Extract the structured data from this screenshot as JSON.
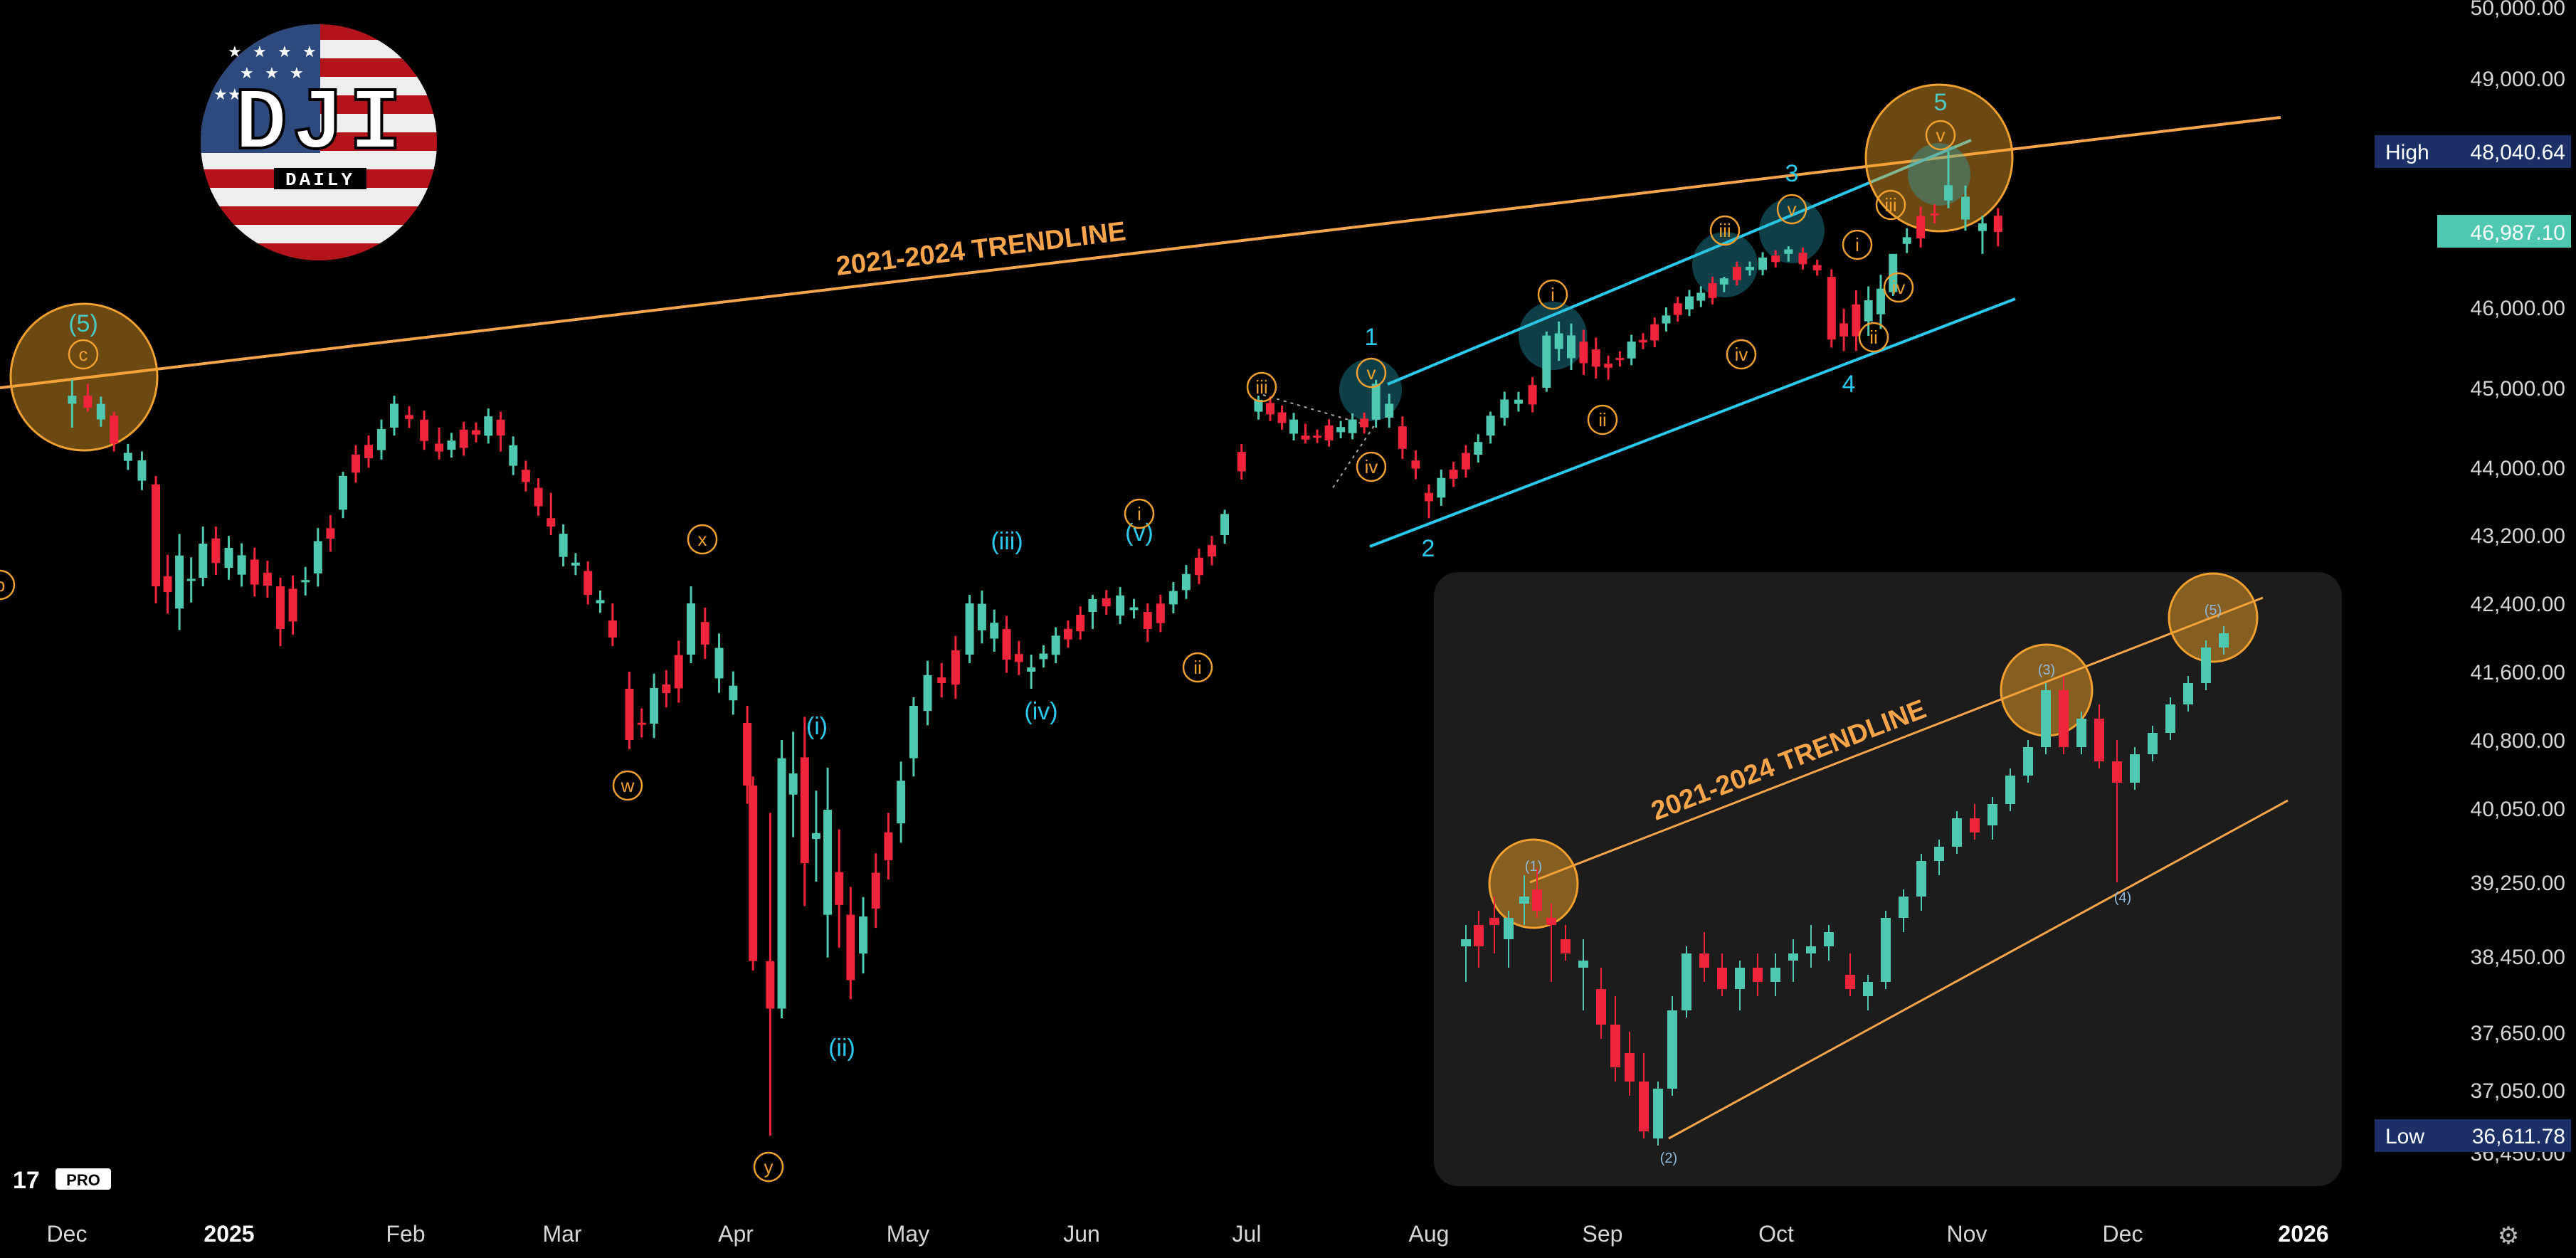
{
  "chart": {
    "logo": {
      "ticker": "DJI",
      "timeframe": "DAILY"
    },
    "trendline_label": "2021-2024 TRENDLINE",
    "watermark": "PRO",
    "x_labels": [
      "Dec",
      "2025",
      "Feb",
      "Mar",
      "Apr",
      "May",
      "Jun",
      "Jul",
      "Aug",
      "Sep",
      "Oct",
      "Nov",
      "Dec",
      "2026"
    ],
    "y_labels": [
      "50,000.00",
      "49,000.00",
      "46,000.00",
      "45,000.00",
      "44,000.00",
      "43,200.00",
      "42,400.00",
      "41,600.00",
      "40,800.00",
      "40,050.00",
      "39,250.00",
      "38,450.00",
      "37,650.00",
      "37,050.00",
      "36,450.00"
    ],
    "high": {
      "label": "High",
      "value": "48,040.64"
    },
    "last": {
      "value": "46,987.10"
    },
    "low": {
      "label": "Low",
      "value": "36,611.78"
    },
    "wave_labels": {
      "big5_top": "(5)",
      "c": "c",
      "b": "b",
      "x": "x",
      "w": "w",
      "y": "y",
      "i_blue": "(i)",
      "ii_blue": "(ii)",
      "iii_blue": "(iii)",
      "iv_blue": "(iv)",
      "v_blue": "(v)",
      "i_or": "i",
      "ii_or": "ii",
      "iii_or": "iii",
      "iv_or": "iv",
      "v_or": "v",
      "w1": "1",
      "w2": "2",
      "w3": "3",
      "w4": "4",
      "w5": "5"
    },
    "inset": {
      "trendline_label": "2021-2024 TRENDLINE",
      "p1": "(1)",
      "p2": "(2)",
      "p3": "(3)",
      "p4": "(4)",
      "p5": "(5)"
    }
  },
  "chart_data": {
    "type": "candlestick",
    "title": "DJI",
    "ylabel": "",
    "ylim": [
      36450,
      50000
    ],
    "series": [
      {
        "name": "",
        "candles": [
          [
            "2024-12-02",
            44800,
            45100,
            44500,
            44900
          ],
          [
            "2024-12-05",
            44900,
            45050,
            44700,
            44750
          ],
          [
            "2024-12-10",
            44650,
            44700,
            44200,
            44300
          ],
          [
            "2024-12-18",
            43800,
            43900,
            42400,
            42600
          ],
          [
            "2024-12-27",
            42700,
            43300,
            42600,
            43100
          ],
          [
            "2025-01-10",
            42600,
            42700,
            41900,
            42100
          ],
          [
            "2025-01-21",
            43500,
            43950,
            43400,
            43900
          ],
          [
            "2025-01-30",
            44500,
            44900,
            44400,
            44800
          ],
          [
            "2025-02-07",
            44300,
            44500,
            44100,
            44200
          ],
          [
            "2025-02-18",
            44600,
            44700,
            44200,
            44400
          ],
          [
            "2025-02-27",
            43400,
            43700,
            43200,
            43300
          ],
          [
            "2025-03-10",
            42200,
            42400,
            41900,
            42000
          ],
          [
            "2025-03-13",
            41400,
            41600,
            40700,
            40800
          ],
          [
            "2025-03-24",
            41800,
            42600,
            41700,
            42400
          ],
          [
            "2025-04-03",
            41000,
            41200,
            40100,
            40300
          ],
          [
            "2025-04-04",
            40300,
            40400,
            38300,
            38400
          ],
          [
            "2025-04-07",
            38400,
            40000,
            36612,
            37900
          ],
          [
            "2025-04-09",
            37900,
            40800,
            37800,
            40600
          ],
          [
            "2025-04-21",
            38900,
            39200,
            38000,
            38200
          ],
          [
            "2025-05-02",
            40600,
            41300,
            40400,
            41200
          ],
          [
            "2025-05-12",
            41800,
            42500,
            41700,
            42400
          ],
          [
            "2025-05-23",
            41600,
            41800,
            41400,
            41650
          ],
          [
            "2025-06-03",
            42300,
            42500,
            42100,
            42450
          ],
          [
            "2025-06-13",
            42300,
            42400,
            41950,
            42100
          ],
          [
            "2025-06-27",
            43200,
            43500,
            43100,
            43450
          ],
          [
            "2025-07-03",
            44700,
            44900,
            44600,
            44850
          ],
          [
            "2025-07-11",
            44400,
            44550,
            44300,
            44350
          ],
          [
            "2025-07-23",
            44600,
            45100,
            44500,
            45050
          ],
          [
            "2025-08-01",
            43700,
            43800,
            43400,
            43600
          ],
          [
            "2025-08-12",
            44400,
            44700,
            44300,
            44650
          ],
          [
            "2025-08-22",
            45000,
            45700,
            44950,
            45650
          ],
          [
            "2025-09-02",
            45300,
            45400,
            45100,
            45250
          ],
          [
            "2025-09-12",
            45800,
            46000,
            45700,
            45900
          ],
          [
            "2025-09-22",
            46300,
            46400,
            46200,
            46380
          ],
          [
            "2025-10-03",
            46700,
            46800,
            46600,
            46760
          ],
          [
            "2025-10-10",
            46400,
            46500,
            45500,
            45600
          ],
          [
            "2025-10-20",
            46200,
            46700,
            46150,
            46700
          ],
          [
            "2025-10-29",
            47400,
            48040,
            47300,
            47600
          ],
          [
            "2025-11-04",
            47000,
            47200,
            46700,
            47100
          ],
          [
            "2025-11-07",
            47200,
            47300,
            46800,
            46987
          ]
        ]
      }
    ]
  }
}
